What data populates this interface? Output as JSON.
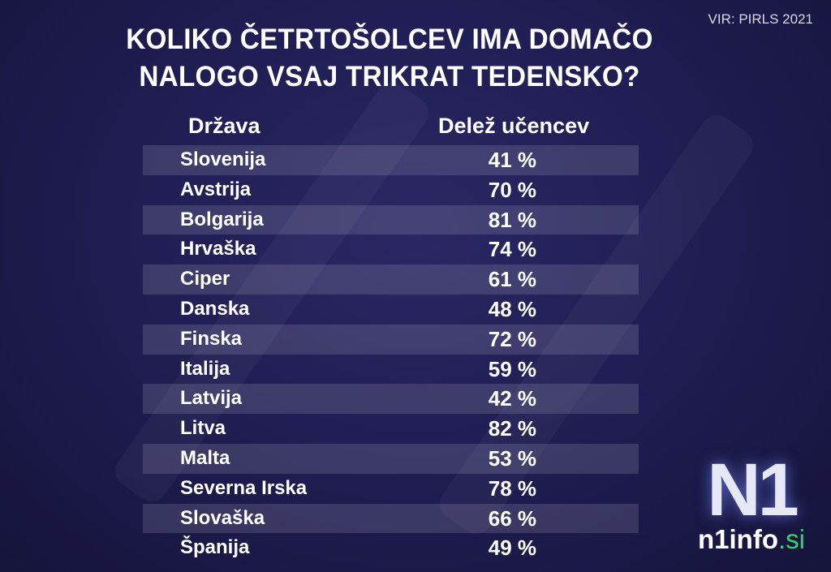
{
  "source": "VIR: PIRLS 2021",
  "title_line1": "KOLIKO ČETRTOŠOLCEV IMA DOMAČO",
  "title_line2": "NALOGO VSAJ TRIKRAT TEDENSKO?",
  "chart_data": {
    "type": "table",
    "columns": [
      "Država",
      "Delež učencev"
    ],
    "rows": [
      {
        "country": "Slovenija",
        "value": "41 %"
      },
      {
        "country": "Avstrija",
        "value": "70 %"
      },
      {
        "country": "Bolgarija",
        "value": "81 %"
      },
      {
        "country": "Hrvaška",
        "value": "74 %"
      },
      {
        "country": "Ciper",
        "value": "61 %"
      },
      {
        "country": "Danska",
        "value": "48 %"
      },
      {
        "country": "Finska",
        "value": "72 %"
      },
      {
        "country": "Italija",
        "value": "59 %"
      },
      {
        "country": "Latvija",
        "value": "42 %"
      },
      {
        "country": "Litva",
        "value": "82 %"
      },
      {
        "country": "Malta",
        "value": "53 %"
      },
      {
        "country": "Severna Irska",
        "value": "78 %"
      },
      {
        "country": "Slovaška",
        "value": "66 %"
      },
      {
        "country": "Španija",
        "value": "49 %"
      }
    ]
  },
  "logo": {
    "mark": "N1",
    "name": "n1info",
    "tld": ".si",
    "tld_color": "#2fd66b"
  },
  "colors": {
    "background": "#1e1c50",
    "stripe": "rgba(255,255,255,0.13)"
  }
}
